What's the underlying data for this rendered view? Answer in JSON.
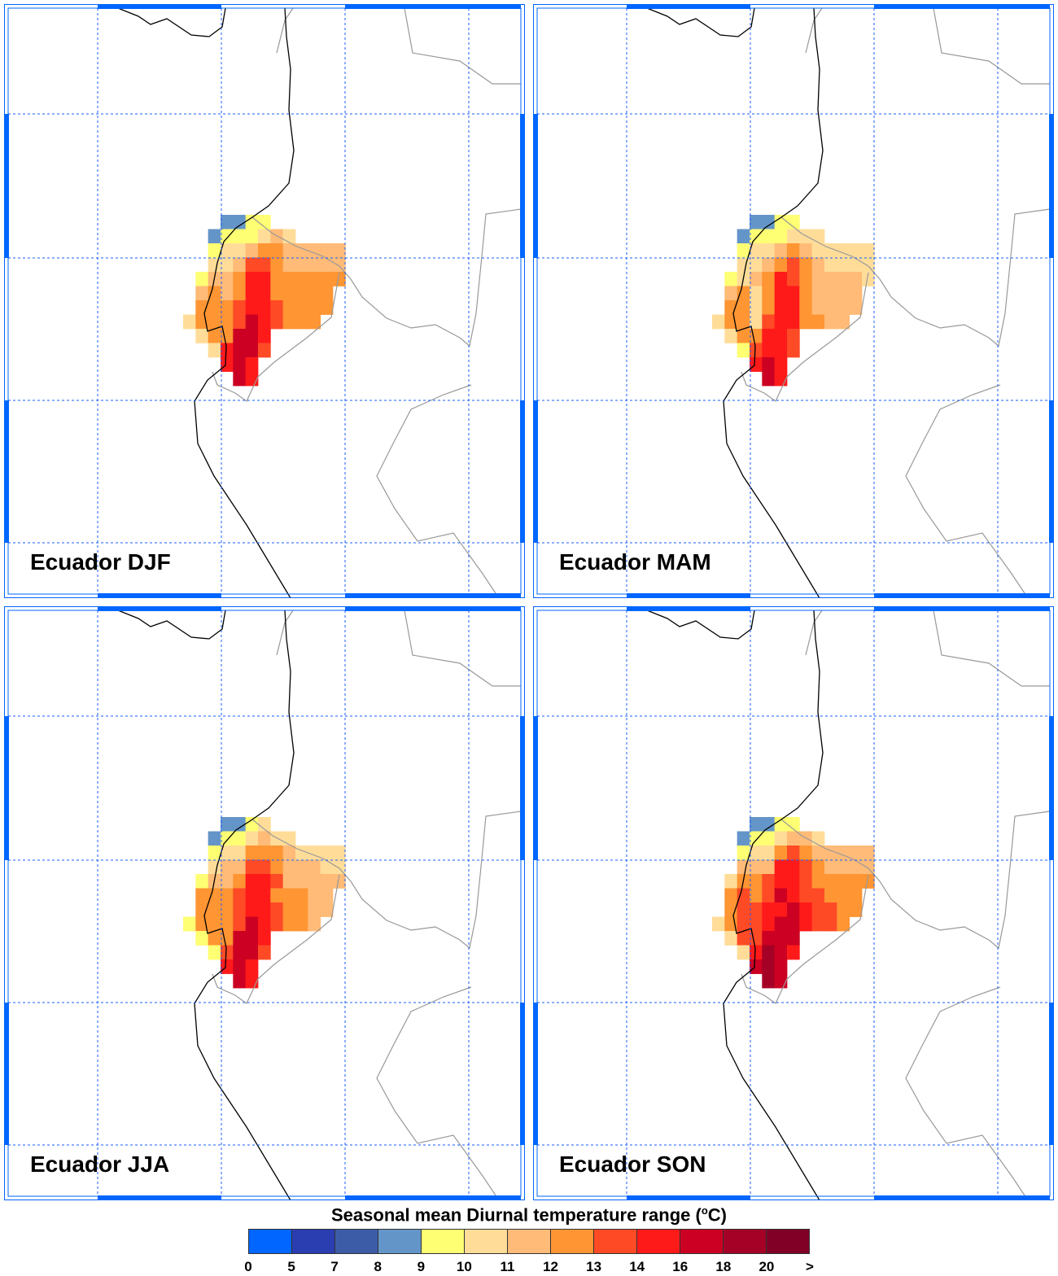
{
  "chart_data": {
    "type": "heatmap",
    "title": "Seasonal mean Diurnal temperature range (°C)",
    "title_parts": {
      "main": "Seasonal mean Diurnal temperature range (",
      "sup": "o",
      "unit": "C)"
    },
    "legend": {
      "placement": "bottom",
      "tick_labels": [
        "0",
        "5",
        "7",
        "8",
        "9",
        "10",
        "11",
        "12",
        "13",
        "14",
        "16",
        "18",
        "20",
        ">"
      ],
      "colors": [
        "#0066ff",
        "#2a3eb1",
        "#3d5ca8",
        "#6495c8",
        "#ffff73",
        "#ffdd99",
        "#ffbb77",
        "#ff9533",
        "#ff4a26",
        "#ff1a1a",
        "#cc0022",
        "#a50026",
        "#800026"
      ]
    },
    "grid_note": "cell values are colour-class indices into legend.colors; -1 = no data",
    "panels": [
      {
        "label": "Ecuador DJF",
        "grid": [
          [
            -1,
            -1,
            -1,
            3,
            3,
            4,
            4,
            -1,
            -1,
            -1,
            -1,
            -1,
            -1
          ],
          [
            -1,
            -1,
            3,
            4,
            4,
            4,
            5,
            6,
            5,
            -1,
            -1,
            -1,
            -1
          ],
          [
            -1,
            -1,
            4,
            5,
            5,
            6,
            7,
            7,
            6,
            6,
            6,
            6,
            6
          ],
          [
            -1,
            -1,
            5,
            5,
            6,
            8,
            8,
            7,
            6,
            6,
            6,
            6,
            6
          ],
          [
            -1,
            4,
            6,
            6,
            7,
            9,
            9,
            7,
            7,
            7,
            7,
            7,
            7
          ],
          [
            -1,
            6,
            7,
            6,
            7,
            9,
            9,
            7,
            7,
            7,
            7,
            7,
            -1
          ],
          [
            -1,
            7,
            7,
            7,
            8,
            9,
            9,
            8,
            7,
            7,
            7,
            7,
            -1
          ],
          [
            5,
            7,
            7,
            7,
            8,
            10,
            9,
            8,
            7,
            7,
            7,
            -1,
            -1
          ],
          [
            -1,
            5,
            7,
            7,
            10,
            10,
            9,
            -1,
            -1,
            -1,
            -1,
            -1,
            -1
          ],
          [
            -1,
            -1,
            5,
            9,
            10,
            10,
            8,
            -1,
            -1,
            -1,
            -1,
            -1,
            -1
          ],
          [
            -1,
            -1,
            -1,
            9,
            10,
            9,
            -1,
            -1,
            -1,
            -1,
            -1,
            -1,
            -1
          ],
          [
            -1,
            -1,
            -1,
            -1,
            10,
            9,
            -1,
            -1,
            -1,
            -1,
            -1,
            -1,
            -1
          ]
        ]
      },
      {
        "label": "Ecuador MAM",
        "grid": [
          [
            -1,
            -1,
            -1,
            3,
            3,
            4,
            4,
            -1,
            -1,
            -1,
            -1,
            -1,
            -1
          ],
          [
            -1,
            -1,
            3,
            4,
            4,
            4,
            5,
            5,
            5,
            -1,
            -1,
            -1,
            -1
          ],
          [
            -1,
            -1,
            4,
            5,
            5,
            6,
            7,
            6,
            5,
            5,
            5,
            5,
            5
          ],
          [
            -1,
            -1,
            5,
            5,
            6,
            7,
            8,
            7,
            6,
            5,
            5,
            5,
            5
          ],
          [
            -1,
            4,
            5,
            6,
            7,
            9,
            8,
            7,
            6,
            6,
            6,
            6,
            5
          ],
          [
            -1,
            6,
            7,
            5,
            7,
            9,
            9,
            7,
            6,
            6,
            6,
            6,
            -1
          ],
          [
            -1,
            7,
            7,
            5,
            7,
            9,
            9,
            7,
            6,
            6,
            6,
            6,
            -1
          ],
          [
            5,
            7,
            7,
            5,
            8,
            9,
            9,
            7,
            7,
            6,
            6,
            -1,
            -1
          ],
          [
            -1,
            5,
            7,
            7,
            9,
            9,
            8,
            -1,
            -1,
            -1,
            -1,
            -1,
            -1
          ],
          [
            -1,
            -1,
            4,
            8,
            9,
            9,
            8,
            -1,
            -1,
            -1,
            -1,
            -1,
            -1
          ],
          [
            -1,
            -1,
            -1,
            9,
            10,
            9,
            -1,
            -1,
            -1,
            -1,
            -1,
            -1,
            -1
          ],
          [
            -1,
            -1,
            -1,
            -1,
            10,
            9,
            -1,
            -1,
            -1,
            -1,
            -1,
            -1,
            -1
          ]
        ]
      },
      {
        "label": "Ecuador JJA",
        "grid": [
          [
            -1,
            -1,
            -1,
            3,
            3,
            4,
            5,
            -1,
            -1,
            -1,
            -1,
            -1,
            -1
          ],
          [
            -1,
            -1,
            3,
            4,
            4,
            5,
            6,
            5,
            5,
            -1,
            -1,
            -1,
            -1
          ],
          [
            -1,
            -1,
            4,
            5,
            5,
            7,
            7,
            7,
            6,
            5,
            5,
            5,
            5
          ],
          [
            -1,
            -1,
            5,
            6,
            6,
            8,
            8,
            7,
            6,
            6,
            6,
            5,
            5
          ],
          [
            -1,
            4,
            6,
            6,
            7,
            9,
            9,
            8,
            6,
            6,
            6,
            6,
            6
          ],
          [
            -1,
            7,
            7,
            7,
            8,
            9,
            9,
            7,
            7,
            7,
            6,
            6,
            -1
          ],
          [
            -1,
            7,
            7,
            7,
            8,
            9,
            9,
            8,
            7,
            7,
            6,
            6,
            -1
          ],
          [
            4,
            7,
            7,
            7,
            8,
            10,
            9,
            8,
            7,
            7,
            6,
            -1,
            -1
          ],
          [
            -1,
            4,
            7,
            7,
            10,
            10,
            9,
            -1,
            -1,
            -1,
            -1,
            -1,
            -1
          ],
          [
            -1,
            -1,
            4,
            8,
            10,
            10,
            8,
            -1,
            -1,
            -1,
            -1,
            -1,
            -1
          ],
          [
            -1,
            -1,
            -1,
            9,
            10,
            9,
            -1,
            -1,
            -1,
            -1,
            -1,
            -1,
            -1
          ],
          [
            -1,
            -1,
            -1,
            -1,
            10,
            9,
            -1,
            -1,
            -1,
            -1,
            -1,
            -1,
            -1
          ]
        ]
      },
      {
        "label": "Ecuador SON",
        "grid": [
          [
            -1,
            -1,
            -1,
            3,
            3,
            4,
            4,
            -1,
            -1,
            -1,
            -1,
            -1,
            -1
          ],
          [
            -1,
            -1,
            3,
            4,
            4,
            5,
            6,
            6,
            5,
            -1,
            -1,
            -1,
            -1
          ],
          [
            -1,
            -1,
            4,
            5,
            5,
            7,
            8,
            7,
            6,
            6,
            6,
            6,
            6
          ],
          [
            -1,
            -1,
            6,
            6,
            6,
            9,
            9,
            8,
            7,
            6,
            6,
            6,
            6
          ],
          [
            -1,
            5,
            7,
            7,
            8,
            9,
            9,
            8,
            7,
            7,
            7,
            7,
            7
          ],
          [
            -1,
            7,
            8,
            7,
            8,
            10,
            9,
            8,
            8,
            7,
            7,
            7,
            -1
          ],
          [
            -1,
            7,
            8,
            8,
            9,
            9,
            10,
            9,
            8,
            8,
            7,
            7,
            -1
          ],
          [
            5,
            7,
            8,
            8,
            9,
            10,
            10,
            9,
            8,
            8,
            7,
            -1,
            -1
          ],
          [
            -1,
            5,
            8,
            8,
            10,
            10,
            10,
            -1,
            -1,
            -1,
            -1,
            -1,
            -1
          ],
          [
            -1,
            -1,
            5,
            9,
            11,
            10,
            9,
            -1,
            -1,
            -1,
            -1,
            -1,
            -1
          ],
          [
            -1,
            -1,
            -1,
            10,
            11,
            10,
            -1,
            -1,
            -1,
            -1,
            -1,
            -1,
            -1
          ],
          [
            -1,
            -1,
            -1,
            -1,
            11,
            10,
            -1,
            -1,
            -1,
            -1,
            -1,
            -1,
            -1
          ]
        ]
      }
    ]
  },
  "colors": {
    "frame": "#0066ff",
    "grid": "#1a5cff",
    "coast": "#000000",
    "border": "#999999"
  }
}
